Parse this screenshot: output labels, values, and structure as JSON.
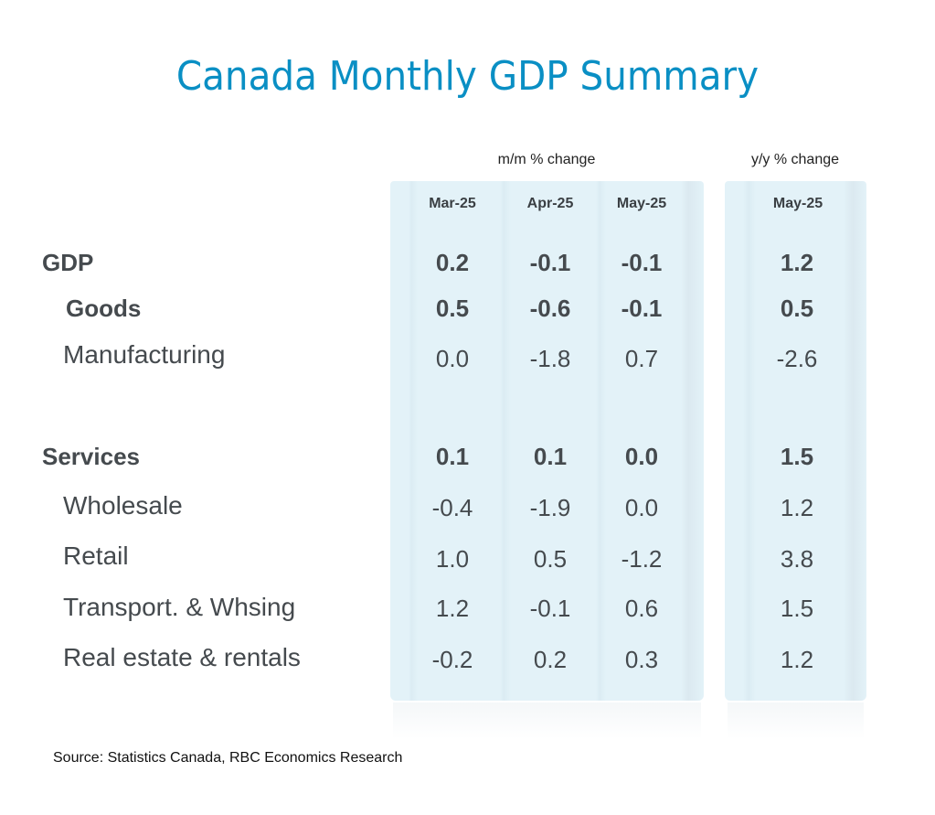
{
  "title": "Canada Monthly GDP Summary",
  "groups": {
    "mm": "m/m % change",
    "yy": "y/y % change"
  },
  "columns": [
    "Mar-25",
    "Apr-25",
    "May-25",
    "May-25"
  ],
  "rows": [
    {
      "label": "GDP",
      "bold": true,
      "values": [
        "0.2",
        "-0.1",
        "-0.1",
        "1.2"
      ]
    },
    {
      "label": "Goods",
      "bold": true,
      "values": [
        "0.5",
        "-0.6",
        "-0.1",
        "0.5"
      ]
    },
    {
      "label": "Manufacturing",
      "bold": false,
      "values": [
        "0.0",
        "-1.8",
        "0.7",
        "-2.6"
      ]
    },
    {
      "label": "Services",
      "bold": true,
      "values": [
        "0.1",
        "0.1",
        "0.0",
        "1.5"
      ]
    },
    {
      "label": "Wholesale",
      "bold": false,
      "values": [
        "-0.4",
        "-1.9",
        "0.0",
        "1.2"
      ]
    },
    {
      "label": "Retail",
      "bold": false,
      "values": [
        "1.0",
        "0.5",
        "-1.2",
        "3.8"
      ]
    },
    {
      "label": "Transport. & Whsing",
      "bold": false,
      "values": [
        "1.2",
        "-0.1",
        "0.6",
        "1.5"
      ]
    },
    {
      "label": "Real estate & rentals",
      "bold": false,
      "values": [
        "-0.2",
        "0.2",
        "0.3",
        "1.2"
      ]
    }
  ],
  "source": "Source:  Statistics Canada, RBC Economics Research",
  "colors": {
    "title": "#0a8fc4",
    "panel": "#e3f2f8",
    "text": "#454a4e"
  }
}
